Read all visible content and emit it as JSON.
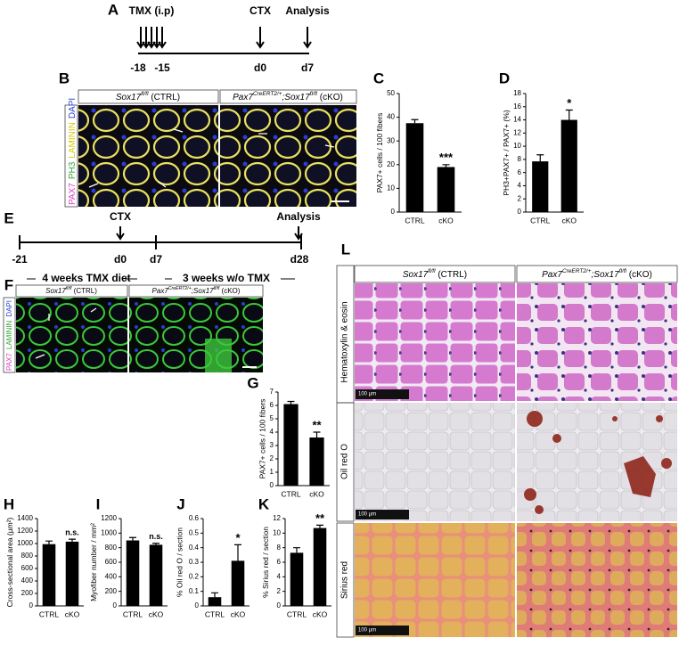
{
  "panel_letters": [
    "A",
    "B",
    "C",
    "D",
    "E",
    "F",
    "G",
    "H",
    "I",
    "J",
    "K",
    "L"
  ],
  "timeline_a": {
    "labels": [
      "TMX (i.p)",
      "CTX",
      "Analysis"
    ],
    "days": [
      "-18",
      "-15",
      "d0",
      "d7"
    ]
  },
  "timeline_e": {
    "labels": [
      "CTX",
      "Analysis"
    ],
    "days": [
      "-21",
      "d0",
      "d7",
      "d28"
    ],
    "periods": [
      "4 weeks TMX diet",
      "3 weeks w/o TMX"
    ]
  },
  "panel_b": {
    "headers": [
      [
        {
          "text": "Sox17",
          "italic": true
        },
        {
          "text": "fl/fl",
          "italic": true,
          "sup": true
        },
        {
          "text": " (CTRL)"
        }
      ],
      [
        {
          "text": "Pax7",
          "italic": true
        },
        {
          "text": "CreERT2/+",
          "italic": true,
          "sup": true
        },
        {
          "text": ";Sox17",
          "italic": true
        },
        {
          "text": "fl/fl",
          "italic": true,
          "sup": true
        },
        {
          "text": " (cKO)"
        }
      ]
    ],
    "stains": [
      {
        "text": "PAX7",
        "color": "#e03cc8"
      },
      {
        "text": "PH3",
        "color": "#2fa82f"
      },
      {
        "text": "LAMININ",
        "color": "#d8c800"
      },
      {
        "text": "DAPI",
        "color": "#2a3cd8"
      }
    ]
  },
  "panel_f": {
    "headers": [
      [
        {
          "text": "Sox17",
          "italic": true
        },
        {
          "text": "fl/fl",
          "italic": true,
          "sup": true
        },
        {
          "text": " (CTRL)"
        }
      ],
      [
        {
          "text": "Pax7",
          "italic": true
        },
        {
          "text": "CreERT2/+",
          "italic": true,
          "sup": true
        },
        {
          "text": ";Sox17",
          "italic": true
        },
        {
          "text": "fl/fl",
          "italic": true,
          "sup": true
        },
        {
          "text": " (cKO)"
        }
      ]
    ],
    "stains": [
      {
        "text": "PAX7",
        "color": "#e03cc8"
      },
      {
        "text": "LAMININ",
        "color": "#2fa82f"
      },
      {
        "text": "DAPI",
        "color": "#2a3cd8"
      }
    ]
  },
  "panel_l": {
    "headers": [
      [
        {
          "text": "Sox17",
          "italic": true
        },
        {
          "text": "fl/fl",
          "italic": true,
          "sup": true
        },
        {
          "text": " (CTRL)"
        }
      ],
      [
        {
          "text": "Pax7",
          "italic": true
        },
        {
          "text": "CreERT2/+",
          "italic": true,
          "sup": true
        },
        {
          "text": ";Sox17",
          "italic": true
        },
        {
          "text": "fl/fl",
          "italic": true,
          "sup": true
        },
        {
          "text": " (cKO)"
        }
      ]
    ],
    "rows": [
      "Hematoxylin & eosin",
      "Oil red O",
      "Sirius red"
    ],
    "scale_bar": "100 µm"
  },
  "chart_data": [
    {
      "type": "bar",
      "ylabel": "PAX7+ cells / 100 fibers",
      "categories": [
        "CTRL",
        "cKO"
      ],
      "values": [
        37.5,
        19
      ],
      "errors": [
        1.5,
        1
      ],
      "annotation": "***",
      "ylim": [
        0,
        50
      ],
      "yticks": [
        0,
        10,
        20,
        30,
        40,
        50
      ],
      "color": "#000000"
    },
    {
      "type": "bar",
      "ylabel": "PH3+PAX7+ / PAX7+ (%)",
      "categories": [
        "CTRL",
        "cKO"
      ],
      "values": [
        7.7,
        14
      ],
      "errors": [
        1,
        1.5
      ],
      "annotation": "*",
      "ylim": [
        0,
        18
      ],
      "yticks": [
        0,
        2,
        4,
        6,
        8,
        10,
        12,
        14,
        16,
        18
      ],
      "color": "#000000"
    },
    {
      "type": "bar",
      "ylabel": "PAX7+ cells / 100 fibers",
      "categories": [
        "CTRL",
        "cKO"
      ],
      "values": [
        6.1,
        3.6
      ],
      "errors": [
        0.2,
        0.4
      ],
      "annotation": "**",
      "ylim": [
        0,
        7
      ],
      "yticks": [
        0,
        1,
        2,
        3,
        4,
        5,
        6,
        7
      ],
      "color": "#000000"
    },
    {
      "type": "bar",
      "ylabel": "Cross-sectional area (µm²)",
      "categories": [
        "CTRL",
        "cKO"
      ],
      "values": [
        990,
        1030
      ],
      "errors": [
        50,
        40
      ],
      "annotation": "n.s.",
      "ylim": [
        0,
        1400
      ],
      "yticks": [
        0,
        200,
        400,
        600,
        800,
        1000,
        1200,
        1400
      ],
      "color": "#000000"
    },
    {
      "type": "bar",
      "ylabel": "Myofiber number / mm²",
      "categories": [
        "CTRL",
        "cKO"
      ],
      "values": [
        900,
        840
      ],
      "errors": [
        40,
        20
      ],
      "annotation": "n.s.",
      "ylim": [
        0,
        1200
      ],
      "yticks": [
        0,
        200,
        400,
        600,
        800,
        1000,
        1200
      ],
      "color": "#000000"
    },
    {
      "type": "bar",
      "ylabel": "% Oil red O / section",
      "categories": [
        "CTRL",
        "cKO"
      ],
      "values": [
        0.06,
        0.31
      ],
      "errors": [
        0.03,
        0.11
      ],
      "annotation": "*",
      "ylim": [
        0,
        0.6
      ],
      "yticks": [
        0,
        0.1,
        0.2,
        0.3,
        0.4,
        0.5,
        0.6
      ],
      "color": "#000000"
    },
    {
      "type": "bar",
      "ylabel": "% Sirius red / section",
      "categories": [
        "CTRL",
        "cKO"
      ],
      "values": [
        7.3,
        10.7
      ],
      "errors": [
        0.7,
        0.4
      ],
      "annotation": "**",
      "ylim": [
        0,
        12
      ],
      "yticks": [
        0,
        2,
        4,
        6,
        8,
        10,
        12
      ],
      "color": "#000000"
    }
  ]
}
